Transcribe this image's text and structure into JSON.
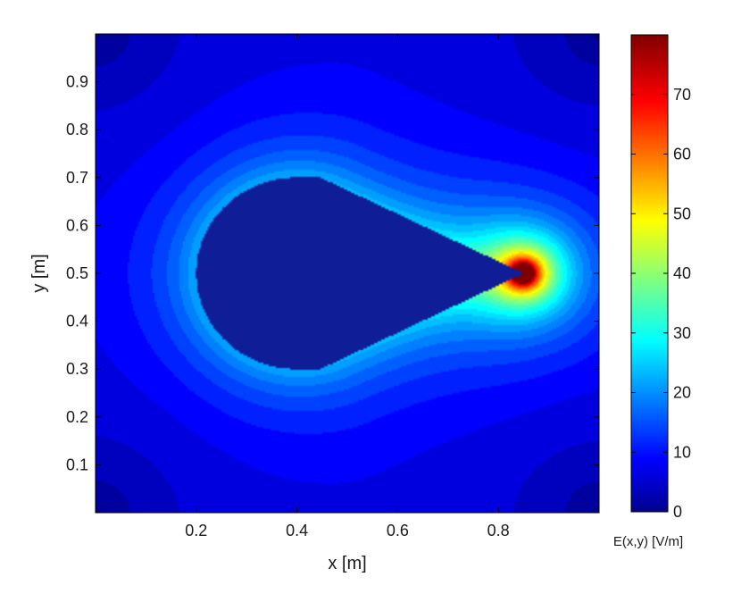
{
  "chart_data": {
    "type": "heatmap",
    "title": "",
    "xlabel": "x [m]",
    "ylabel": "y [m]",
    "xlim": [
      0,
      1
    ],
    "ylim": [
      0,
      1
    ],
    "x_ticks": [
      "0.2",
      "0.4",
      "0.6",
      "0.8"
    ],
    "y_ticks": [
      "0.1",
      "0.2",
      "0.3",
      "0.4",
      "0.5",
      "0.6",
      "0.7",
      "0.8",
      "0.9"
    ],
    "colorbar": {
      "label": "E(x,y) [V/m]",
      "range": [
        0,
        80
      ],
      "ticks": [
        "0",
        "10",
        "20",
        "30",
        "40",
        "50",
        "60",
        "70"
      ],
      "colormap": "jet"
    },
    "grid": false,
    "conductor": {
      "shape": "teardrop",
      "circle_center": [
        0.4,
        0.5
      ],
      "circle_radius": 0.2,
      "tip": [
        0.85,
        0.5
      ],
      "field_inside": 0
    },
    "field_peak": {
      "x": 0.85,
      "y": 0.5,
      "value": 80
    }
  }
}
